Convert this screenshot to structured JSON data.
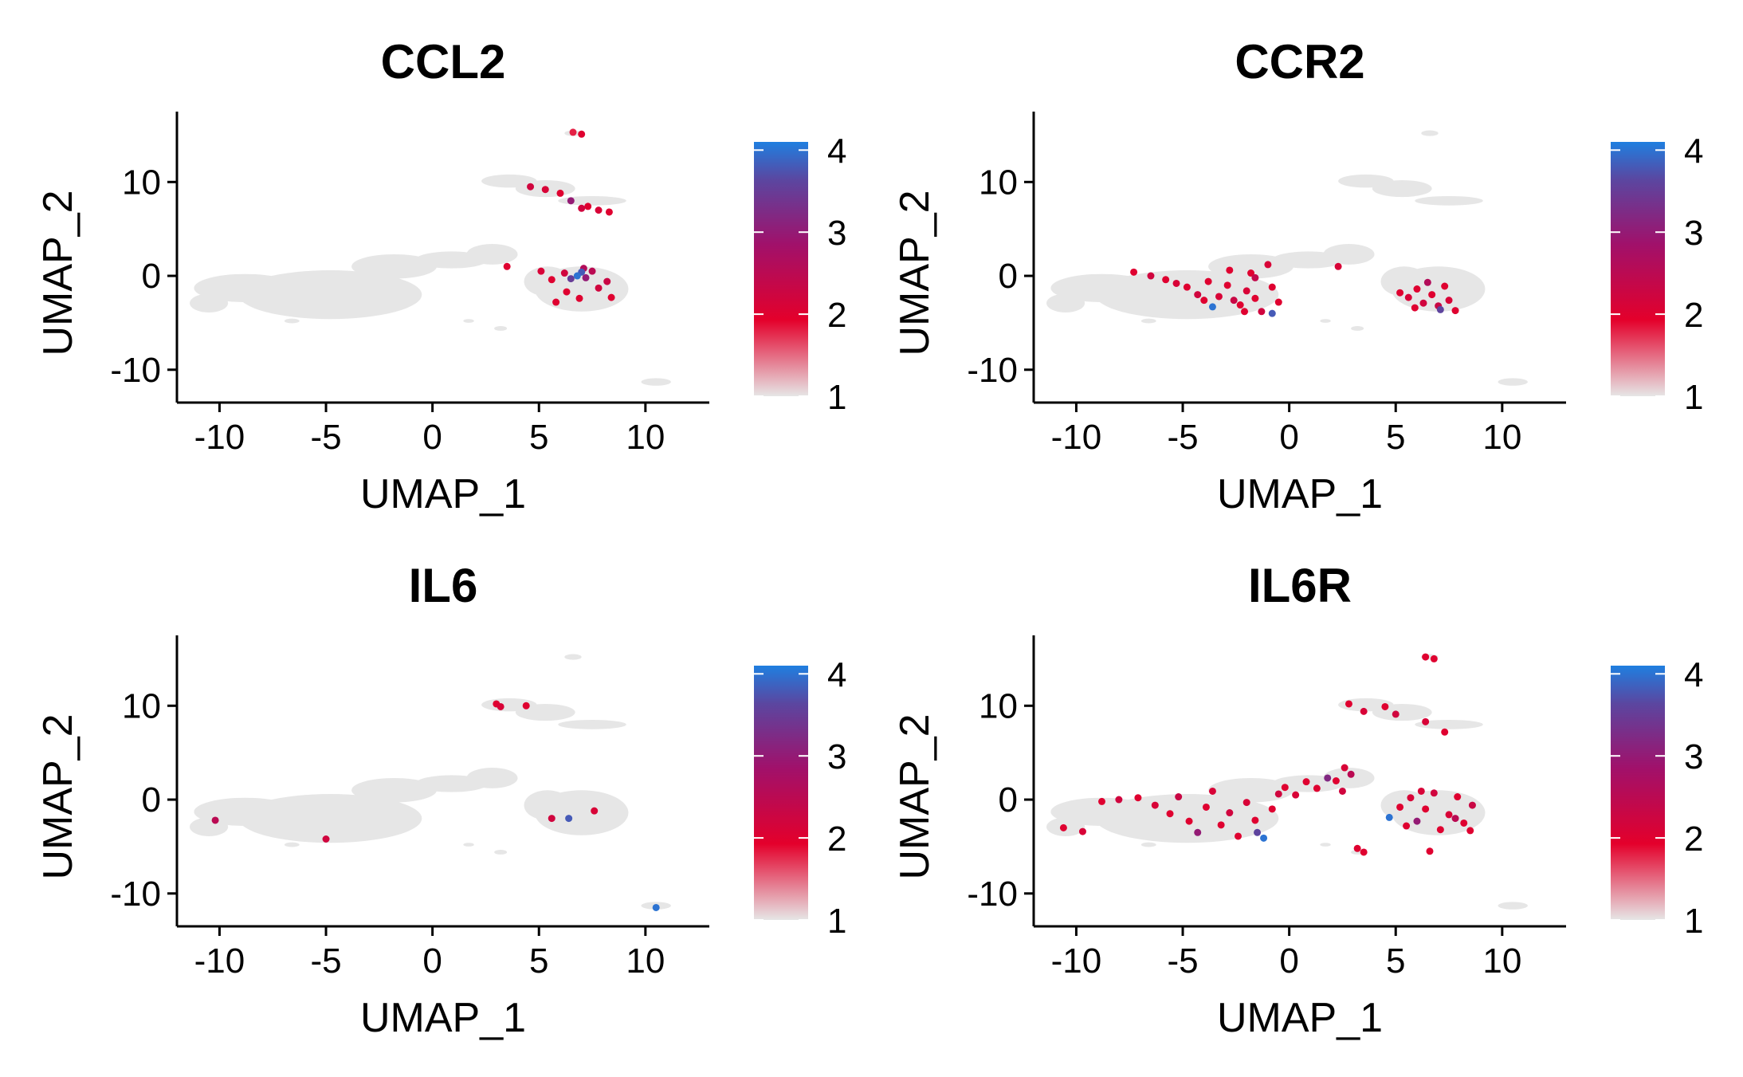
{
  "chart_data": [
    {
      "type": "scatter",
      "title": "CCL2",
      "xlabel": "UMAP_1",
      "ylabel": "UMAP_2",
      "xlim": [
        -12,
        13
      ],
      "ylim": [
        -13.5,
        17.5
      ],
      "x_ticks": [
        -10,
        -5,
        0,
        5,
        10
      ],
      "x_tick_labels": [
        "-10",
        "-5",
        "0",
        "5",
        "10"
      ],
      "y_ticks": [
        -10,
        0,
        10
      ],
      "y_tick_labels": [
        "-10",
        "0",
        "10"
      ],
      "legend_range": [
        1,
        4.1
      ],
      "legend_ticks": [
        1,
        2,
        3,
        4
      ],
      "legend_tick_labels": [
        "1",
        "2",
        "3",
        "4"
      ],
      "points": [
        [
          6.6,
          15.3,
          1.8
        ],
        [
          7.0,
          15.1,
          2.0
        ],
        [
          4.6,
          9.5,
          2.2
        ],
        [
          5.3,
          9.2,
          2.1
        ],
        [
          6.0,
          8.8,
          2.0
        ],
        [
          6.5,
          8.0,
          3.0
        ],
        [
          7.0,
          7.2,
          2.2
        ],
        [
          7.3,
          7.4,
          2.0
        ],
        [
          7.8,
          7.0,
          2.1
        ],
        [
          8.3,
          6.8,
          2.0
        ],
        [
          3.5,
          1.0,
          2.0
        ],
        [
          5.1,
          0.5,
          2.1
        ],
        [
          5.6,
          -0.4,
          2.0
        ],
        [
          6.2,
          0.3,
          2.2
        ],
        [
          6.5,
          -0.3,
          3.5
        ],
        [
          6.8,
          0.0,
          4.0
        ],
        [
          7.0,
          0.4,
          3.8
        ],
        [
          7.2,
          -0.2,
          3.0
        ],
        [
          7.5,
          0.5,
          2.5
        ],
        [
          7.8,
          -1.3,
          2.2
        ],
        [
          6.3,
          -1.7,
          2.0
        ],
        [
          6.9,
          -2.4,
          2.0
        ],
        [
          8.2,
          -0.6,
          2.3
        ],
        [
          8.4,
          -2.3,
          2.0
        ],
        [
          5.8,
          -2.8,
          2.0
        ],
        [
          7.1,
          0.8,
          2.6
        ]
      ]
    },
    {
      "type": "scatter",
      "title": "CCR2",
      "xlabel": "UMAP_1",
      "ylabel": "UMAP_2",
      "xlim": [
        -12,
        13
      ],
      "ylim": [
        -13.5,
        17.5
      ],
      "x_ticks": [
        -10,
        -5,
        0,
        5,
        10
      ],
      "x_tick_labels": [
        "-10",
        "-5",
        "0",
        "5",
        "10"
      ],
      "y_ticks": [
        -10,
        0,
        10
      ],
      "y_tick_labels": [
        "-10",
        "0",
        "10"
      ],
      "legend_range": [
        1,
        4.1
      ],
      "legend_ticks": [
        1,
        2,
        3,
        4
      ],
      "legend_tick_labels": [
        "1",
        "2",
        "3",
        "4"
      ],
      "points": [
        [
          -7.3,
          0.4,
          2.0
        ],
        [
          -6.5,
          0.0,
          2.2
        ],
        [
          -5.8,
          -0.4,
          2.0
        ],
        [
          -5.3,
          -0.8,
          2.1
        ],
        [
          -4.8,
          -1.2,
          2.0
        ],
        [
          -4.3,
          -2.0,
          2.2
        ],
        [
          -4.0,
          -2.6,
          2.0
        ],
        [
          -3.6,
          -3.3,
          4.0
        ],
        [
          -3.3,
          -2.2,
          2.1
        ],
        [
          -2.9,
          -1.0,
          2.0
        ],
        [
          -2.6,
          -2.6,
          2.3
        ],
        [
          -2.3,
          -3.1,
          2.0
        ],
        [
          -2.0,
          -1.6,
          2.1
        ],
        [
          -1.6,
          -2.4,
          2.0
        ],
        [
          -1.3,
          -3.8,
          2.2
        ],
        [
          -0.8,
          -4.0,
          3.8
        ],
        [
          -2.8,
          0.6,
          2.0
        ],
        [
          -1.8,
          0.3,
          2.0
        ],
        [
          -1.0,
          1.2,
          2.1
        ],
        [
          -3.8,
          -0.6,
          2.0
        ],
        [
          -0.8,
          -1.2,
          2.0
        ],
        [
          -1.6,
          -0.2,
          2.4
        ],
        [
          -0.5,
          -2.8,
          2.0
        ],
        [
          -2.1,
          -3.8,
          2.0
        ],
        [
          2.3,
          1.0,
          2.1
        ],
        [
          5.2,
          -1.8,
          2.0
        ],
        [
          5.6,
          -2.3,
          2.1
        ],
        [
          6.0,
          -1.4,
          2.0
        ],
        [
          6.3,
          -2.9,
          2.2
        ],
        [
          6.7,
          -2.0,
          2.0
        ],
        [
          7.0,
          -3.2,
          2.3
        ],
        [
          7.3,
          -1.1,
          2.0
        ],
        [
          7.5,
          -2.6,
          2.1
        ],
        [
          7.8,
          -3.7,
          2.0
        ],
        [
          6.5,
          -0.7,
          2.6
        ],
        [
          7.1,
          -3.6,
          3.6
        ],
        [
          5.9,
          -3.4,
          2.0
        ]
      ]
    },
    {
      "type": "scatter",
      "title": "IL6",
      "xlabel": "UMAP_1",
      "ylabel": "UMAP_2",
      "xlim": [
        -12,
        13
      ],
      "ylim": [
        -13.5,
        17.5
      ],
      "x_ticks": [
        -10,
        -5,
        0,
        5,
        10
      ],
      "x_tick_labels": [
        "-10",
        "-5",
        "0",
        "5",
        "10"
      ],
      "y_ticks": [
        -10,
        0,
        10
      ],
      "y_tick_labels": [
        "-10",
        "0",
        "10"
      ],
      "legend_range": [
        1,
        4.1
      ],
      "legend_ticks": [
        1,
        2,
        3,
        4
      ],
      "legend_tick_labels": [
        "1",
        "2",
        "3",
        "4"
      ],
      "points": [
        [
          -10.2,
          -2.2,
          2.5
        ],
        [
          -5.0,
          -4.2,
          2.2
        ],
        [
          3.0,
          10.2,
          2.0
        ],
        [
          3.2,
          9.9,
          2.1
        ],
        [
          4.4,
          10.0,
          2.0
        ],
        [
          5.6,
          -2.0,
          2.2
        ],
        [
          6.4,
          -2.0,
          3.8
        ],
        [
          7.6,
          -1.2,
          2.1
        ],
        [
          10.5,
          -11.5,
          4.0
        ]
      ]
    },
    {
      "type": "scatter",
      "title": "IL6R",
      "xlabel": "UMAP_1",
      "ylabel": "UMAP_2",
      "xlim": [
        -12,
        13
      ],
      "ylim": [
        -13.5,
        17.5
      ],
      "x_ticks": [
        -10,
        -5,
        0,
        5,
        10
      ],
      "x_tick_labels": [
        "-10",
        "-5",
        "0",
        "5",
        "10"
      ],
      "y_ticks": [
        -10,
        0,
        10
      ],
      "y_tick_labels": [
        "-10",
        "0",
        "10"
      ],
      "legend_range": [
        1,
        4.1
      ],
      "legend_ticks": [
        1,
        2,
        3,
        4
      ],
      "legend_tick_labels": [
        "1",
        "2",
        "3",
        "4"
      ],
      "points": [
        [
          -10.6,
          -3.0,
          2.0
        ],
        [
          -9.7,
          -3.4,
          2.1
        ],
        [
          -8.8,
          -0.2,
          2.0
        ],
        [
          -8.0,
          0.0,
          2.2
        ],
        [
          -7.1,
          0.2,
          2.0
        ],
        [
          -6.3,
          -0.6,
          2.1
        ],
        [
          -5.6,
          -1.5,
          2.0
        ],
        [
          -5.2,
          0.3,
          2.3
        ],
        [
          -4.7,
          -2.3,
          2.0
        ],
        [
          -4.3,
          -3.5,
          3.0
        ],
        [
          -3.9,
          -0.8,
          2.0
        ],
        [
          -3.6,
          0.9,
          2.1
        ],
        [
          -3.2,
          -2.7,
          2.0
        ],
        [
          -2.8,
          -1.4,
          2.2
        ],
        [
          -2.4,
          -3.9,
          2.0
        ],
        [
          -2.0,
          -0.3,
          2.1
        ],
        [
          -1.6,
          -2.2,
          2.0
        ],
        [
          -1.2,
          -4.1,
          4.0
        ],
        [
          -1.5,
          -3.5,
          3.6
        ],
        [
          -0.8,
          -1.0,
          2.0
        ],
        [
          -0.5,
          0.6,
          2.2
        ],
        [
          -0.2,
          1.3,
          2.0
        ],
        [
          0.3,
          0.5,
          2.1
        ],
        [
          0.8,
          1.9,
          2.0
        ],
        [
          1.3,
          1.2,
          2.0
        ],
        [
          1.8,
          2.3,
          3.2
        ],
        [
          2.2,
          2.0,
          2.0
        ],
        [
          2.6,
          3.4,
          2.1
        ],
        [
          2.9,
          2.7,
          2.5
        ],
        [
          2.5,
          0.9,
          2.2
        ],
        [
          3.2,
          -5.2,
          2.0
        ],
        [
          3.5,
          -5.6,
          2.0
        ],
        [
          2.8,
          10.2,
          2.0
        ],
        [
          3.5,
          9.4,
          2.1
        ],
        [
          4.5,
          9.9,
          2.0
        ],
        [
          5.0,
          9.1,
          2.2
        ],
        [
          6.4,
          15.2,
          2.0
        ],
        [
          6.8,
          15.0,
          2.0
        ],
        [
          6.4,
          8.3,
          2.1
        ],
        [
          7.3,
          7.2,
          2.0
        ],
        [
          4.7,
          -1.9,
          4.0
        ],
        [
          5.2,
          -0.8,
          2.0
        ],
        [
          5.7,
          0.2,
          2.1
        ],
        [
          6.0,
          -2.3,
          3.0
        ],
        [
          6.4,
          -1.0,
          2.0
        ],
        [
          6.8,
          0.7,
          2.2
        ],
        [
          7.1,
          -3.2,
          2.0
        ],
        [
          7.5,
          -1.6,
          2.1
        ],
        [
          7.9,
          0.3,
          2.0
        ],
        [
          8.2,
          -2.5,
          2.0
        ],
        [
          8.6,
          -0.6,
          2.3
        ],
        [
          8.5,
          -3.3,
          2.0
        ],
        [
          6.6,
          -5.5,
          2.0
        ],
        [
          7.8,
          -2.0,
          2.5
        ],
        [
          6.2,
          0.9,
          2.1
        ],
        [
          5.5,
          -2.8,
          2.0
        ]
      ]
    }
  ]
}
